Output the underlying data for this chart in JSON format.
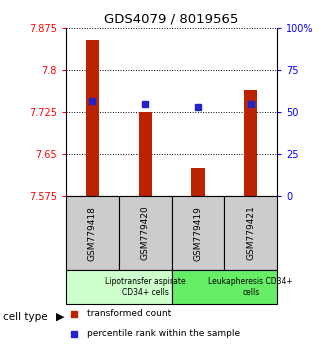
{
  "title": "GDS4079 / 8019565",
  "samples": [
    "GSM779418",
    "GSM779420",
    "GSM779419",
    "GSM779421"
  ],
  "transformed_counts": [
    7.855,
    7.725,
    7.625,
    7.765
  ],
  "percentile_ranks": [
    57,
    55,
    53,
    55
  ],
  "y_min": 7.575,
  "y_max": 7.875,
  "y_ticks": [
    7.575,
    7.65,
    7.725,
    7.8,
    7.875
  ],
  "y_tick_labels": [
    "7.575",
    "7.65",
    "7.725",
    "7.8",
    "7.875"
  ],
  "right_y_ticks": [
    0,
    25,
    50,
    75,
    100
  ],
  "right_y_tick_labels": [
    "0",
    "25",
    "50",
    "75",
    "100%"
  ],
  "bar_color": "#bb2200",
  "dot_color": "#2222cc",
  "cell_types": [
    {
      "label": "Lipotransfer aspirate\nCD34+ cells",
      "color": "#ccffcc",
      "start": 0,
      "end": 2
    },
    {
      "label": "Leukapheresis CD34+\ncells",
      "color": "#66ee66",
      "start": 2,
      "end": 4
    }
  ],
  "cell_type_label": "cell type",
  "legend_entries": [
    {
      "color": "#bb2200",
      "label": "transformed count"
    },
    {
      "color": "#2222cc",
      "label": "percentile rank within the sample"
    }
  ],
  "bar_width": 0.25,
  "dotted_line_color": "#000000"
}
